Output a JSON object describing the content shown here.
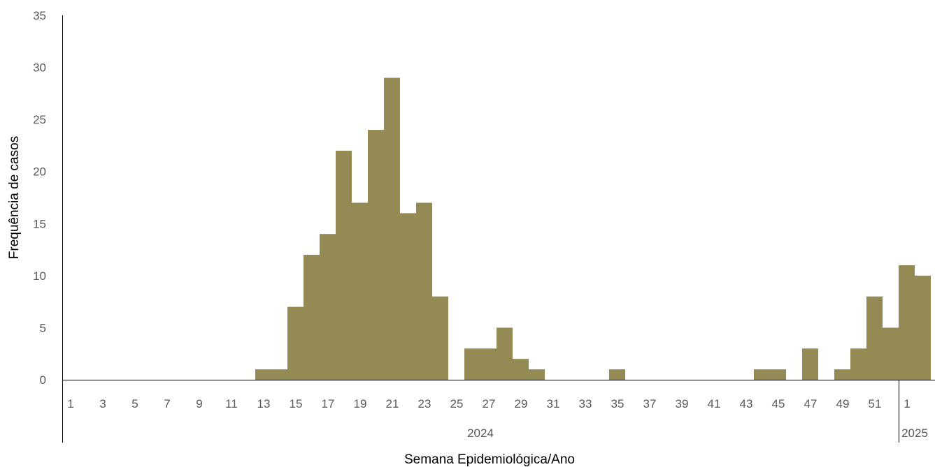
{
  "chart_data": {
    "type": "bar",
    "title": "",
    "xlabel": "Semana Epidemiológica/Ano",
    "ylabel": "Frequência de casos",
    "ylim": [
      0,
      35
    ],
    "yticks": [
      0,
      5,
      10,
      15,
      20,
      25,
      30,
      35
    ],
    "grid": false,
    "legend": "none",
    "bar_color": "#948A54",
    "groups": [
      {
        "label": "2024",
        "weeks": 52
      },
      {
        "label": "2025",
        "weeks": 2
      }
    ],
    "x_tick_labels": [
      "1",
      "3",
      "5",
      "7",
      "9",
      "11",
      "13",
      "15",
      "17",
      "19",
      "21",
      "23",
      "25",
      "27",
      "29",
      "31",
      "33",
      "35",
      "37",
      "39",
      "41",
      "43",
      "45",
      "47",
      "49",
      "51",
      "1"
    ],
    "categories": [
      "1",
      "2",
      "3",
      "4",
      "5",
      "6",
      "7",
      "8",
      "9",
      "10",
      "11",
      "12",
      "13",
      "14",
      "15",
      "16",
      "17",
      "18",
      "19",
      "20",
      "21",
      "22",
      "23",
      "24",
      "25",
      "26",
      "27",
      "28",
      "29",
      "30",
      "31",
      "32",
      "33",
      "34",
      "35",
      "36",
      "37",
      "38",
      "39",
      "40",
      "41",
      "42",
      "43",
      "44",
      "45",
      "46",
      "47",
      "48",
      "49",
      "50",
      "51",
      "52",
      "1",
      "2"
    ],
    "values": [
      0,
      0,
      0,
      0,
      0,
      0,
      0,
      0,
      0,
      0,
      0,
      0,
      1,
      1,
      7,
      12,
      14,
      22,
      17,
      24,
      29,
      16,
      17,
      8,
      0,
      3,
      3,
      5,
      2,
      1,
      0,
      0,
      0,
      0,
      1,
      0,
      0,
      0,
      0,
      0,
      0,
      0,
      0,
      1,
      1,
      0,
      3,
      0,
      1,
      3,
      8,
      5,
      11,
      10
    ]
  }
}
